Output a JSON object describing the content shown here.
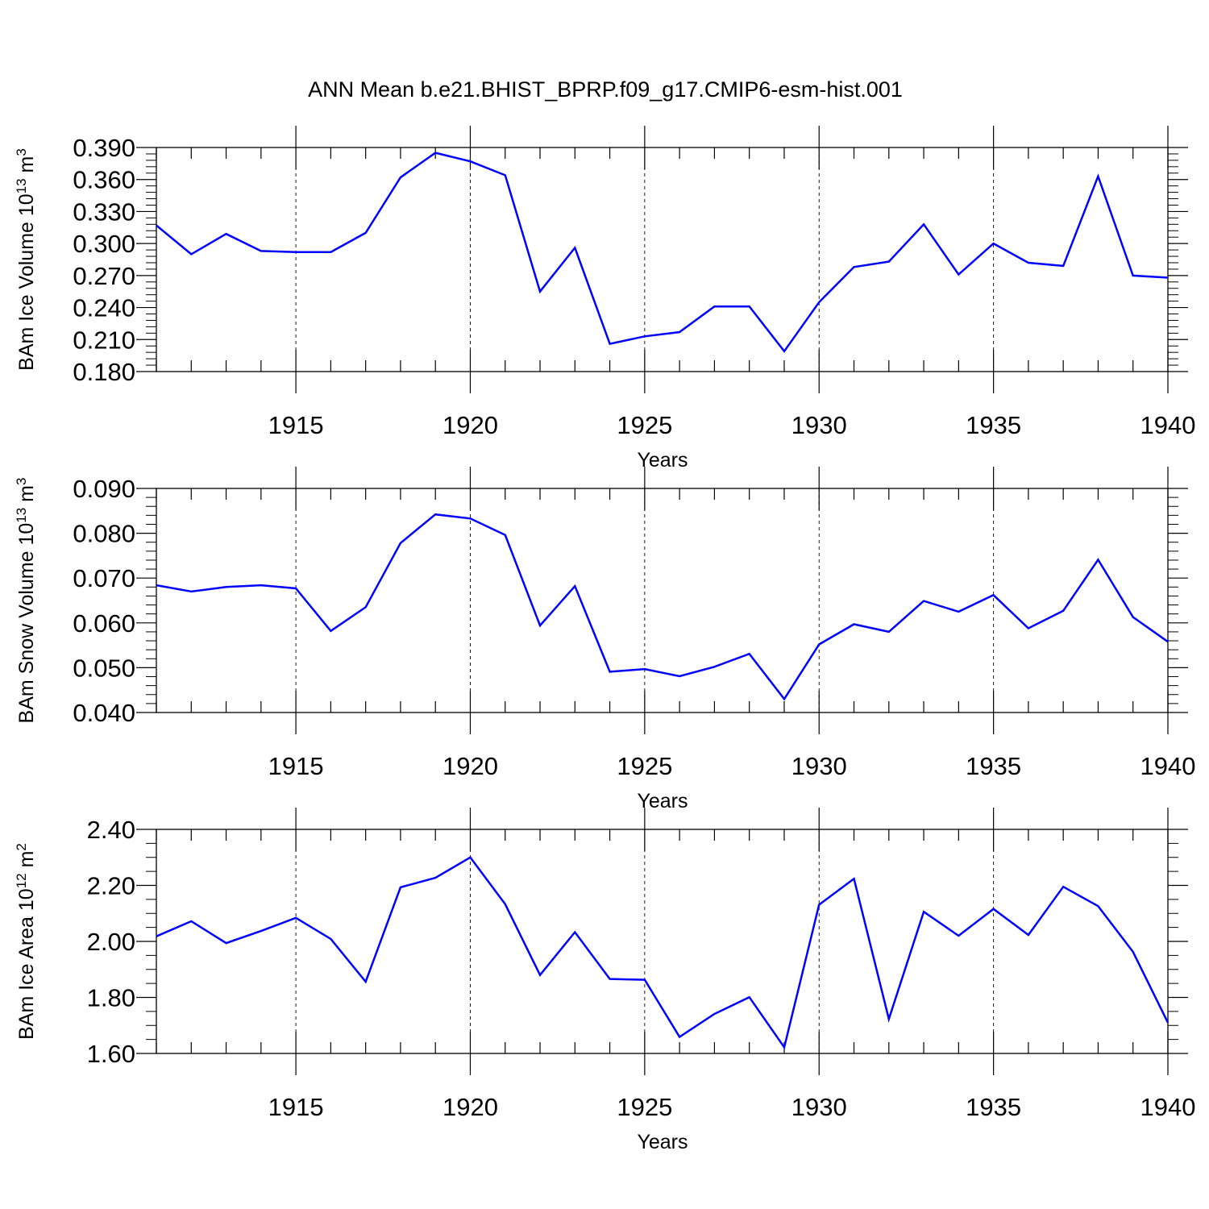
{
  "title": "ANN Mean b.e21.BHIST_BPRP.f09_g17.CMIP6-esm-hist.001",
  "line_color": "#0000ff",
  "chart_data": [
    {
      "type": "line",
      "ylabel": "BAm Ice Volume",
      "yunit_base": "10",
      "yunit_exp": "13",
      "yunit_m": "m",
      "yunit_mexp": "3",
      "xlabel": "Years",
      "xlim": [
        1911,
        1940
      ],
      "ylim": [
        0.18,
        0.39
      ],
      "yticks": [
        "0.180",
        "0.210",
        "0.240",
        "0.270",
        "0.300",
        "0.330",
        "0.360",
        "0.390"
      ],
      "xticks": [
        "1915",
        "1920",
        "1925",
        "1930",
        "1935",
        "1940"
      ],
      "x": [
        1911,
        1912,
        1913,
        1914,
        1915,
        1916,
        1917,
        1918,
        1919,
        1920,
        1921,
        1922,
        1923,
        1924,
        1925,
        1926,
        1927,
        1928,
        1929,
        1930,
        1931,
        1932,
        1933,
        1934,
        1935,
        1936,
        1937,
        1938,
        1939,
        1940
      ],
      "series": [
        {
          "values": [
            0.317,
            0.29,
            0.309,
            0.293,
            0.292,
            0.292,
            0.31,
            0.362,
            0.385,
            0.377,
            0.364,
            0.255,
            0.296,
            0.206,
            0.213,
            0.217,
            0.241,
            0.241,
            0.199,
            0.245,
            0.278,
            0.283,
            0.318,
            0.271,
            0.3,
            0.282,
            0.279,
            0.363,
            0.27,
            0.268
          ]
        }
      ]
    },
    {
      "type": "line",
      "ylabel": "BAm Snow Volume",
      "yunit_base": "10",
      "yunit_exp": "13",
      "yunit_m": "m",
      "yunit_mexp": "3",
      "xlabel": "Years",
      "xlim": [
        1911,
        1940
      ],
      "ylim": [
        0.04,
        0.09
      ],
      "yticks": [
        "0.040",
        "0.050",
        "0.060",
        "0.070",
        "0.080",
        "0.090"
      ],
      "xticks": [
        "1915",
        "1920",
        "1925",
        "1930",
        "1935",
        "1940"
      ],
      "x": [
        1911,
        1912,
        1913,
        1914,
        1915,
        1916,
        1917,
        1918,
        1919,
        1920,
        1921,
        1922,
        1923,
        1924,
        1925,
        1926,
        1927,
        1928,
        1929,
        1930,
        1931,
        1932,
        1933,
        1934,
        1935,
        1936,
        1937,
        1938,
        1939,
        1940
      ],
      "series": [
        {
          "values": [
            0.0684,
            0.067,
            0.068,
            0.0684,
            0.0677,
            0.0582,
            0.0635,
            0.0778,
            0.0842,
            0.0833,
            0.0796,
            0.0594,
            0.0682,
            0.0491,
            0.0497,
            0.0481,
            0.0502,
            0.0531,
            0.043,
            0.0552,
            0.0597,
            0.058,
            0.0649,
            0.0625,
            0.0662,
            0.0588,
            0.0627,
            0.0741,
            0.0613,
            0.0558
          ]
        }
      ]
    },
    {
      "type": "line",
      "ylabel": "BAm Ice Area",
      "yunit_base": "10",
      "yunit_exp": "12",
      "yunit_m": "m",
      "yunit_mexp": "2",
      "xlabel": "Years",
      "xlim": [
        1911,
        1940
      ],
      "ylim": [
        1.6,
        2.4
      ],
      "yticks": [
        "1.60",
        "1.80",
        "2.00",
        "2.20",
        "2.40"
      ],
      "xticks": [
        "1915",
        "1920",
        "1925",
        "1930",
        "1935",
        "1940"
      ],
      "x": [
        1911,
        1912,
        1913,
        1914,
        1915,
        1916,
        1917,
        1918,
        1919,
        1920,
        1921,
        1922,
        1923,
        1924,
        1925,
        1926,
        1927,
        1928,
        1929,
        1930,
        1931,
        1932,
        1933,
        1934,
        1935,
        1936,
        1937,
        1938,
        1939,
        1940
      ],
      "series": [
        {
          "values": [
            2.018,
            2.072,
            1.994,
            2.037,
            2.084,
            2.009,
            1.856,
            2.193,
            2.227,
            2.3,
            2.133,
            1.88,
            2.033,
            1.866,
            1.863,
            1.659,
            1.741,
            1.801,
            1.622,
            2.131,
            2.224,
            1.723,
            2.106,
            2.02,
            2.116,
            2.023,
            2.195,
            2.126,
            1.963,
            1.71
          ]
        }
      ]
    }
  ]
}
